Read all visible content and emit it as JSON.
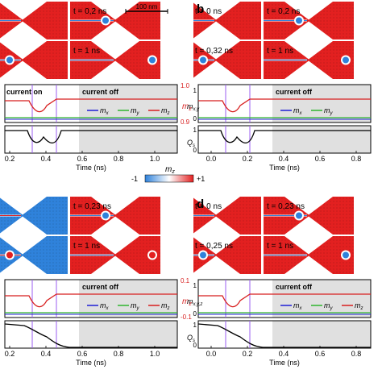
{
  "colorbar": {
    "label": "m",
    "label_sub": "z",
    "min": "-1",
    "max": "+1"
  },
  "scalebar": "100 nm",
  "panels": [
    {
      "letter": "",
      "times": [
        "",
        "t = 0,2 ns",
        "",
        "t = 1 ns"
      ],
      "status_on": "current on",
      "status_off": "current off",
      "legend": [
        "m",
        "m",
        "m"
      ],
      "legend_sub": [
        "x",
        "y",
        "z"
      ],
      "ylabel_right": "m",
      "ylabel_right_sub": "z",
      "yticks_right": [
        "1.0",
        "0.9"
      ],
      "yticks_left_mid": [],
      "yticks_left_bot": [],
      "ylabel_left_mid": "",
      "ylabel_left_bot": "",
      "xticks": [
        "0.2",
        "0.4",
        "0.6",
        "0.8",
        "1.0"
      ],
      "xlabel": "Time (ns)"
    },
    {
      "letter": "b",
      "times": [
        "t = 0 ns",
        "t = 0,2 ns",
        "t = 0,32 ns",
        "t = 1 ns"
      ],
      "status_on": "",
      "status_off": "current off",
      "legend": [
        "m",
        "m",
        ""
      ],
      "legend_sub": [
        "x",
        "y",
        ""
      ],
      "ylabel_right": "",
      "ylabel_right_sub": "",
      "yticks_right": [],
      "yticks_left_mid": [
        "1",
        "0"
      ],
      "yticks_left_bot": [
        "1",
        "0"
      ],
      "ylabel_left_mid": "m",
      "ylabel_left_mid_sub": "x,y",
      "ylabel_left_bot": "Q",
      "ylabel_left_bot_sub": "s",
      "xticks": [
        "0.0",
        "0.2",
        "0.4",
        "0.6",
        "0.8"
      ],
      "xlabel": "Time (ns)"
    },
    {
      "letter": "",
      "times": [
        "",
        "t = 0,23 ns",
        "",
        "t = 1 ns"
      ],
      "status_on": "",
      "status_off": "current off",
      "legend": [
        "m",
        "m",
        "m"
      ],
      "legend_sub": [
        "x",
        "y",
        "z"
      ],
      "ylabel_right": "m",
      "ylabel_right_sub": "z",
      "yticks_right": [
        "0.1",
        "-0.1"
      ],
      "yticks_left_mid": [],
      "yticks_left_bot": [],
      "ylabel_left_mid": "",
      "ylabel_left_bot": "",
      "xticks": [
        "0.2",
        "0.4",
        "0.6",
        "0.8",
        "1.0"
      ],
      "xlabel": "Time (ns)"
    },
    {
      "letter": "d",
      "times": [
        "t = 0 ns",
        "t = 0,23 ns",
        "t = 0,25 ns",
        "t = 1 ns"
      ],
      "status_on": "",
      "status_off": "current off",
      "legend": [
        "m",
        "m",
        "m"
      ],
      "legend_sub": [
        "x",
        "y",
        "z"
      ],
      "ylabel_right": "",
      "ylabel_right_sub": "",
      "yticks_right": [],
      "yticks_left_mid": [
        "1",
        "0"
      ],
      "yticks_left_bot": [
        "1",
        "0"
      ],
      "ylabel_left_mid": "m",
      "ylabel_left_mid_sub": "x,y,z",
      "ylabel_left_bot": "Q",
      "ylabel_left_bot_sub": "s",
      "xticks": [
        "0.0",
        "0.2",
        "0.4",
        "0.6",
        "0.8"
      ],
      "xlabel": "Time (ns)"
    }
  ],
  "colors": {
    "red": "#e32020",
    "blue": "#2f82db",
    "gray": "#c7c7c7",
    "mx": "#1f1fd6",
    "my": "#2fb52f",
    "mz": "#d81f1f",
    "marker": "#9b5cf0"
  }
}
